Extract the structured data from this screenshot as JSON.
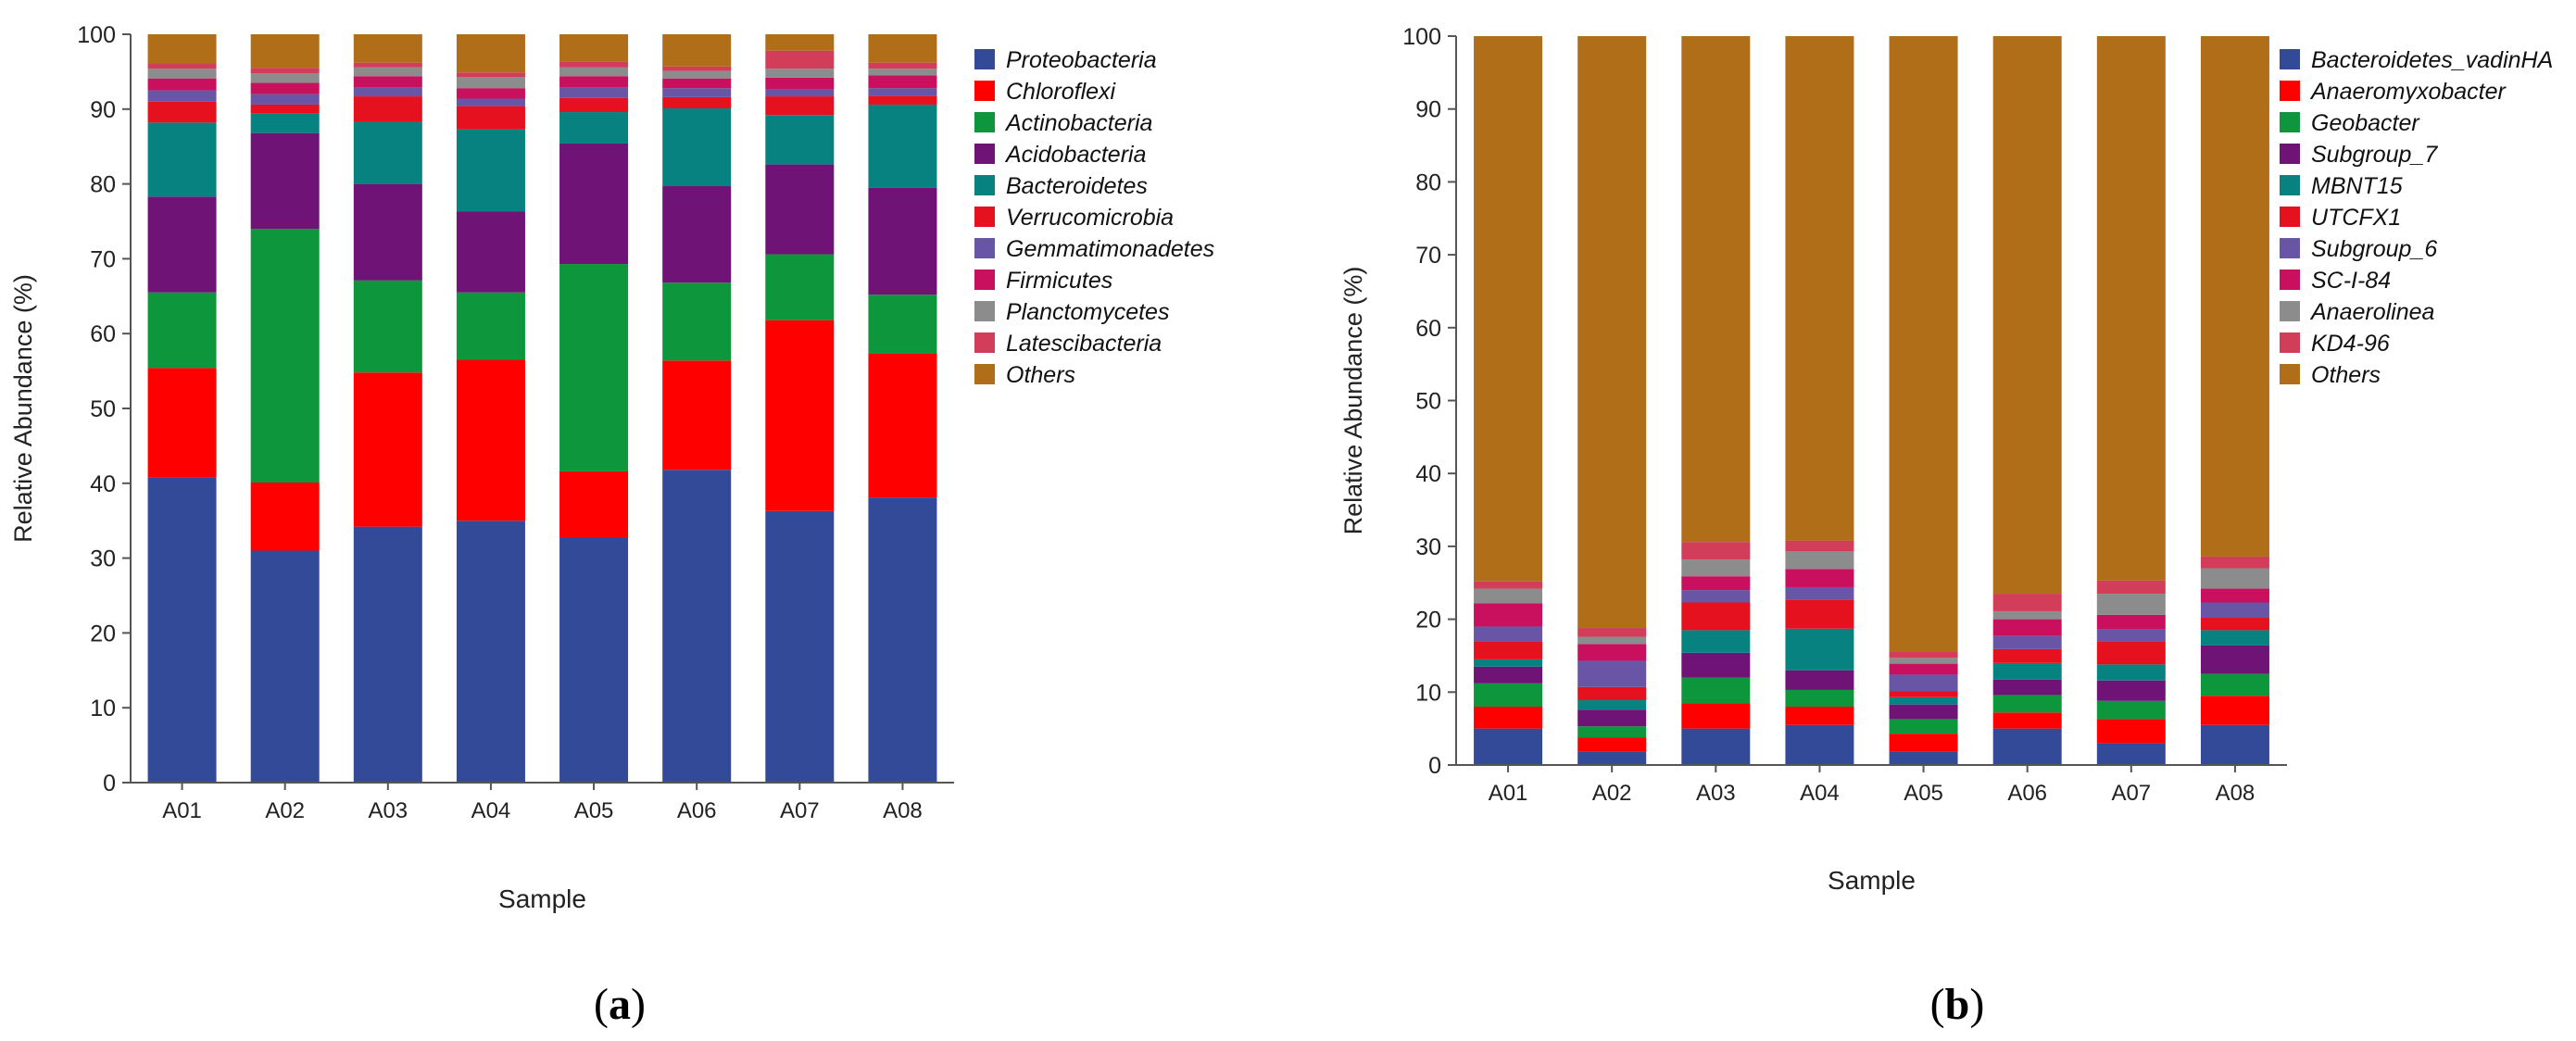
{
  "chart_data": [
    {
      "type": "bar",
      "stacked": true,
      "panel_label": "(a)",
      "xlabel": "Sample",
      "ylabel": "Relative Abundance (%)",
      "ylim": [
        0,
        100
      ],
      "yticks": [
        0,
        10,
        20,
        30,
        40,
        50,
        60,
        70,
        80,
        90,
        100
      ],
      "grid": false,
      "legend_position": "right",
      "categories": [
        "A01",
        "A02",
        "A03",
        "A04",
        "A05",
        "A06",
        "A07",
        "A08"
      ],
      "series": [
        {
          "name": "Proteobacteria",
          "color": "#324a98",
          "values": [
            40.8,
            31.0,
            34.2,
            35.0,
            32.8,
            41.8,
            36.3,
            38.1
          ]
        },
        {
          "name": "Chloroflexi",
          "color": "#fe0000",
          "values": [
            14.6,
            9.1,
            20.6,
            21.5,
            8.8,
            14.6,
            25.5,
            19.2
          ]
        },
        {
          "name": "Actinobacteria",
          "color": "#0d963c",
          "values": [
            10.1,
            33.9,
            12.3,
            9.0,
            27.7,
            10.4,
            8.8,
            7.9
          ]
        },
        {
          "name": "Acidobacteria",
          "color": "#6f1377",
          "values": [
            12.8,
            12.8,
            12.9,
            10.8,
            16.1,
            12.9,
            12.0,
            14.3
          ]
        },
        {
          "name": "Bacteroidetes",
          "color": "#088280",
          "values": [
            9.9,
            2.6,
            8.3,
            11.0,
            4.2,
            10.4,
            6.6,
            11.1
          ]
        },
        {
          "name": "Verrucomicrobia",
          "color": "#e5111f",
          "values": [
            2.8,
            1.2,
            3.4,
            3.1,
            1.9,
            1.5,
            2.5,
            1.2
          ]
        },
        {
          "name": "Gemmatimonadetes",
          "color": "#6955a6",
          "values": [
            1.5,
            1.4,
            1.2,
            1.0,
            1.4,
            1.2,
            1.0,
            1.0
          ]
        },
        {
          "name": "Firmicutes",
          "color": "#c8105e",
          "values": [
            1.6,
            1.5,
            1.5,
            1.4,
            1.5,
            1.3,
            1.5,
            1.7
          ]
        },
        {
          "name": "Planctomycetes",
          "color": "#8c8c8c",
          "values": [
            1.3,
            1.3,
            1.2,
            1.5,
            1.2,
            1.0,
            1.2,
            0.9
          ]
        },
        {
          "name": "Latescibacteria",
          "color": "#d23e5a",
          "values": [
            0.7,
            0.7,
            0.6,
            0.6,
            0.7,
            0.6,
            2.4,
            0.8
          ]
        },
        {
          "name": "Others",
          "color": "#b06e19",
          "values": [
            3.9,
            4.5,
            3.8,
            5.1,
            3.7,
            4.3,
            2.2,
            3.8
          ]
        }
      ]
    },
    {
      "type": "bar",
      "stacked": true,
      "panel_label": "(b)",
      "xlabel": "Sample",
      "ylabel": "Relative Abundance (%)",
      "ylim": [
        0,
        100
      ],
      "yticks": [
        0,
        10,
        20,
        30,
        40,
        50,
        60,
        70,
        80,
        90,
        100
      ],
      "grid": false,
      "legend_position": "right",
      "categories": [
        "A01",
        "A02",
        "A03",
        "A04",
        "A05",
        "A06",
        "A07",
        "A08"
      ],
      "series": [
        {
          "name": "Bacteroidetes_vadinHA",
          "color": "#324a98",
          "values": [
            5.0,
            1.8,
            5.0,
            5.5,
            1.8,
            5.0,
            3.0,
            5.5
          ]
        },
        {
          "name": "Anaeromyxobacter",
          "color": "#fe0000",
          "values": [
            3.0,
            2.0,
            3.5,
            2.5,
            2.5,
            2.2,
            3.3,
            4.0
          ]
        },
        {
          "name": "Geobacter",
          "color": "#0d963c",
          "values": [
            3.2,
            1.5,
            3.5,
            2.3,
            2.0,
            2.4,
            2.5,
            3.0
          ]
        },
        {
          "name": "Subgroup_7",
          "color": "#6f1377",
          "values": [
            2.3,
            2.3,
            3.4,
            2.7,
            2.0,
            2.1,
            2.8,
            3.9
          ]
        },
        {
          "name": "MBNT15",
          "color": "#088280",
          "values": [
            1.0,
            1.3,
            3.1,
            5.7,
            1.0,
            2.3,
            2.2,
            2.1
          ]
        },
        {
          "name": "UTCFX1",
          "color": "#e5111f",
          "values": [
            2.5,
            1.8,
            3.8,
            4.0,
            0.8,
            1.9,
            3.2,
            1.7
          ]
        },
        {
          "name": "Subgroup_6",
          "color": "#6955a6",
          "values": [
            2.0,
            3.6,
            1.7,
            1.7,
            2.3,
            1.8,
            1.6,
            2.1
          ]
        },
        {
          "name": "SC-I-84",
          "color": "#c8105e",
          "values": [
            3.2,
            2.3,
            1.9,
            2.5,
            1.5,
            2.3,
            2.0,
            1.9
          ]
        },
        {
          "name": "Anaerolinea",
          "color": "#8c8c8c",
          "values": [
            2.0,
            1.0,
            2.3,
            2.4,
            0.8,
            1.1,
            2.9,
            2.8
          ]
        },
        {
          "name": "KD4-96",
          "color": "#d23e5a",
          "values": [
            1.0,
            1.2,
            2.4,
            1.5,
            0.8,
            2.4,
            1.8,
            1.6
          ]
        },
        {
          "name": "Others",
          "color": "#b06e19",
          "values": [
            74.8,
            81.2,
            69.4,
            69.2,
            84.5,
            76.5,
            74.7,
            71.4
          ]
        }
      ]
    }
  ]
}
